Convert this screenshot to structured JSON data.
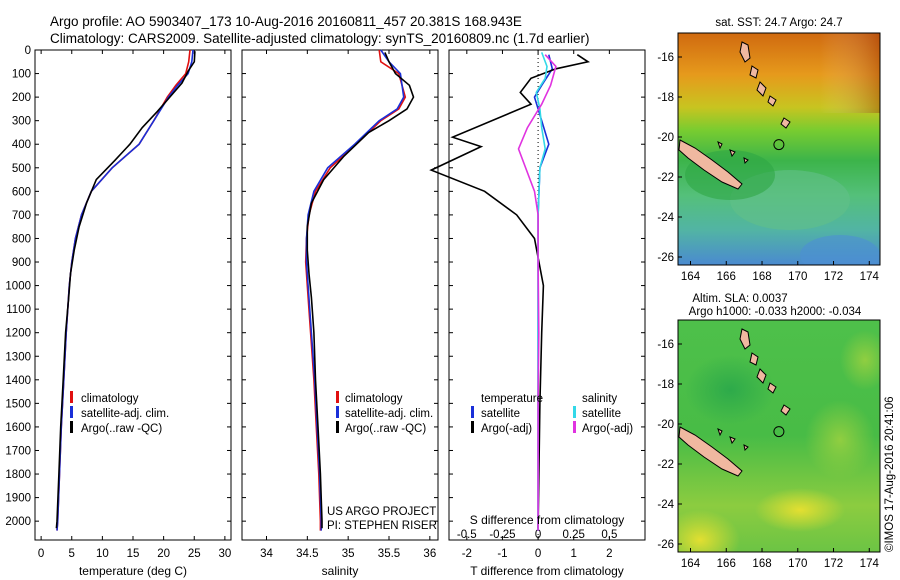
{
  "header": {
    "line1": "Argo profile: AO 5903407_173 10-Aug-2016 20160811_457 20.381S 168.943E",
    "line2": "Climatology: CARS2009. Satellite-adjusted climatology: synTS_20160809.nc (1.7d earlier)"
  },
  "colors": {
    "climatology": "#e01010",
    "satellite": "#1a2fd8",
    "argo": "#000000",
    "salinity_satellite": "#33d8e8",
    "salinity_argo": "#e033e0"
  },
  "chart_data": [
    {
      "type": "line",
      "name": "temperature-profile",
      "xlabel": "temperature (deg C)",
      "ylabel": "",
      "xlim": [
        -1,
        31
      ],
      "ylim": [
        2080,
        0
      ],
      "xticks": [
        0,
        5,
        10,
        15,
        20,
        25,
        30
      ],
      "yticks": [
        0,
        100,
        200,
        300,
        400,
        500,
        600,
        700,
        800,
        900,
        1000,
        1100,
        1200,
        1300,
        1400,
        1500,
        1600,
        1700,
        1800,
        1900,
        2000
      ],
      "legend": [
        "climatology",
        "satellite-adj. clim.",
        "Argo(..raw -QC)"
      ],
      "series": [
        {
          "name": "climatology",
          "color": "#e01010",
          "points": [
            [
              24.3,
              0
            ],
            [
              24.1,
              50
            ],
            [
              23.6,
              100
            ],
            [
              22,
              150
            ],
            [
              20.6,
              200
            ],
            [
              18.4,
              300
            ],
            [
              16,
              400
            ],
            [
              11.6,
              500
            ],
            [
              8.2,
              600
            ],
            [
              6.6,
              700
            ],
            [
              5.6,
              800
            ],
            [
              5,
              900
            ],
            [
              4.6,
              1000
            ],
            [
              4.1,
              1200
            ],
            [
              3.7,
              1400
            ],
            [
              3.3,
              1600
            ],
            [
              3,
              1800
            ],
            [
              2.7,
              2000
            ],
            [
              2.6,
              2040
            ]
          ]
        },
        {
          "name": "satellite-adj. clim.",
          "color": "#1a2fd8",
          "points": [
            [
              24.8,
              0
            ],
            [
              24.6,
              50
            ],
            [
              24,
              100
            ],
            [
              22.3,
              150
            ],
            [
              20.8,
              200
            ],
            [
              18.4,
              300
            ],
            [
              16,
              400
            ],
            [
              11.6,
              500
            ],
            [
              8.2,
              600
            ],
            [
              6.6,
              700
            ],
            [
              5.6,
              800
            ],
            [
              5,
              900
            ],
            [
              4.6,
              1000
            ],
            [
              4.1,
              1200
            ],
            [
              3.7,
              1400
            ],
            [
              3.3,
              1600
            ],
            [
              3,
              1800
            ],
            [
              2.7,
              2000
            ],
            [
              2.6,
              2040
            ]
          ]
        },
        {
          "name": "Argo(..raw -QC)",
          "color": "#000000",
          "points": [
            [
              25.1,
              5
            ],
            [
              25,
              50
            ],
            [
              24,
              90
            ],
            [
              23,
              140
            ],
            [
              21,
              200
            ],
            [
              19,
              260
            ],
            [
              16.5,
              330
            ],
            [
              14.5,
              400
            ],
            [
              12,
              470
            ],
            [
              9,
              550
            ],
            [
              7.4,
              650
            ],
            [
              6.2,
              750
            ],
            [
              5.4,
              850
            ],
            [
              4.8,
              950
            ],
            [
              4.5,
              1050
            ],
            [
              4,
              1200
            ],
            [
              3.6,
              1400
            ],
            [
              3.2,
              1600
            ],
            [
              2.9,
              1800
            ],
            [
              2.6,
              2000
            ],
            [
              2.5,
              2030
            ]
          ]
        }
      ]
    },
    {
      "type": "line",
      "name": "salinity-profile",
      "xlabel": "salinity",
      "ylabel": "",
      "xlim": [
        33.7,
        36.1
      ],
      "ylim": [
        2080,
        0
      ],
      "xticks": [
        34,
        34.5,
        35,
        35.5,
        36
      ],
      "legend": [
        "climatology",
        "satellite-adj. clim.",
        "Argo(..raw -QC)"
      ],
      "annotation": [
        "US ARGO PROJECT",
        "PI: STEPHEN RISER"
      ],
      "series": [
        {
          "name": "climatology",
          "color": "#e01010",
          "points": [
            [
              35.38,
              0
            ],
            [
              35.4,
              50
            ],
            [
              35.62,
              100
            ],
            [
              35.7,
              200
            ],
            [
              35.62,
              250
            ],
            [
              35.4,
              300
            ],
            [
              35.1,
              400
            ],
            [
              34.78,
              500
            ],
            [
              34.6,
              600
            ],
            [
              34.52,
              700
            ],
            [
              34.49,
              800
            ],
            [
              34.48,
              900
            ],
            [
              34.5,
              1000
            ],
            [
              34.54,
              1200
            ],
            [
              34.58,
              1400
            ],
            [
              34.61,
              1600
            ],
            [
              34.64,
              1800
            ],
            [
              34.66,
              2000
            ],
            [
              34.66,
              2040
            ]
          ]
        },
        {
          "name": "satellite-adj. clim.",
          "color": "#1a2fd8",
          "points": [
            [
              35.4,
              0
            ],
            [
              35.5,
              50
            ],
            [
              35.64,
              100
            ],
            [
              35.68,
              200
            ],
            [
              35.6,
              250
            ],
            [
              35.38,
              300
            ],
            [
              35.08,
              400
            ],
            [
              34.75,
              500
            ],
            [
              34.58,
              600
            ],
            [
              34.51,
              700
            ],
            [
              34.49,
              800
            ],
            [
              34.49,
              900
            ],
            [
              34.51,
              1000
            ],
            [
              34.55,
              1200
            ],
            [
              34.59,
              1400
            ],
            [
              34.62,
              1600
            ],
            [
              34.65,
              1800
            ],
            [
              34.67,
              2000
            ],
            [
              34.67,
              2040
            ]
          ]
        },
        {
          "name": "Argo(..raw -QC)",
          "color": "#000000",
          "points": [
            [
              35.45,
              10
            ],
            [
              35.5,
              50
            ],
            [
              35.58,
              100
            ],
            [
              35.75,
              150
            ],
            [
              35.8,
              200
            ],
            [
              35.72,
              250
            ],
            [
              35.5,
              300
            ],
            [
              35.25,
              350
            ],
            [
              34.95,
              450
            ],
            [
              34.7,
              550
            ],
            [
              34.55,
              650
            ],
            [
              34.5,
              750
            ],
            [
              34.5,
              850
            ],
            [
              34.52,
              950
            ],
            [
              34.55,
              1050
            ],
            [
              34.58,
              1200
            ],
            [
              34.6,
              1400
            ],
            [
              34.63,
              1600
            ],
            [
              34.66,
              1800
            ],
            [
              34.68,
              2000
            ],
            [
              34.68,
              2030
            ]
          ]
        }
      ]
    },
    {
      "type": "line",
      "name": "difference-profile",
      "xlabel": "T difference from climatology",
      "xlabel_top": "S difference from climatology",
      "xlim": [
        -2.5,
        3
      ],
      "ylim": [
        2080,
        0
      ],
      "xticks": [
        -2,
        -1,
        0,
        1,
        2
      ],
      "xticks_top": [
        -0.5,
        -0.25,
        0,
        0.25,
        0.5
      ],
      "legend_titles": [
        "temperature",
        "salinity"
      ],
      "legend": [
        "satellite",
        "Argo(-adj)",
        "satellite",
        "Argo(-adj)"
      ],
      "series": [
        {
          "name": "temperature satellite",
          "color": "#1a2fd8",
          "points": [
            [
              0.3,
              20
            ],
            [
              0.4,
              80
            ],
            [
              0.1,
              150
            ],
            [
              -0.1,
              200
            ],
            [
              0.1,
              300
            ],
            [
              0.3,
              400
            ],
            [
              0.05,
              500
            ],
            [
              0,
              700
            ],
            [
              0,
              1000
            ],
            [
              0,
              1500
            ],
            [
              0,
              2040
            ]
          ]
        },
        {
          "name": "temperature Argo(-adj)",
          "color": "#000000",
          "points": [
            [
              1.1,
              20
            ],
            [
              1.4,
              50
            ],
            [
              0.5,
              80
            ],
            [
              -0.2,
              120
            ],
            [
              -0.5,
              180
            ],
            [
              -0.2,
              230
            ],
            [
              -2.4,
              370
            ],
            [
              -1.6,
              410
            ],
            [
              -3,
              510
            ],
            [
              -1.5,
              600
            ],
            [
              -0.6,
              700
            ],
            [
              -0.1,
              800
            ],
            [
              0.15,
              1000
            ],
            [
              0.1,
              1200
            ],
            [
              0.05,
              1500
            ],
            [
              0,
              2030
            ]
          ]
        },
        {
          "name": "salinity satellite",
          "color": "#33d8e8",
          "points": [
            [
              0.1,
              10
            ],
            [
              0.25,
              70
            ],
            [
              0.2,
              120
            ],
            [
              -0.05,
              180
            ],
            [
              0.05,
              250
            ],
            [
              0.1,
              330
            ],
            [
              0.2,
              420
            ],
            [
              0.05,
              500
            ],
            [
              0,
              700
            ],
            [
              0,
              1000
            ],
            [
              0,
              1500
            ],
            [
              0,
              2040
            ]
          ]
        },
        {
          "name": "salinity Argo(-adj)",
          "color": "#e033e0",
          "points": [
            [
              0.2,
              20
            ],
            [
              0.5,
              70
            ],
            [
              0.35,
              150
            ],
            [
              0.1,
              230
            ],
            [
              -0.3,
              330
            ],
            [
              -0.55,
              420
            ],
            [
              -0.3,
              520
            ],
            [
              -0.1,
              600
            ],
            [
              0,
              700
            ],
            [
              0,
              900
            ],
            [
              0.02,
              1200
            ],
            [
              0,
              1500
            ],
            [
              0,
              2040
            ]
          ]
        }
      ]
    },
    {
      "type": "heatmap",
      "name": "sst-map",
      "title": "sat. SST: 24.7  Argo: 24.7",
      "xlim": [
        163.3,
        174.6
      ],
      "ylim": [
        -26.4,
        -14.8
      ],
      "xticks": [
        164,
        166,
        168,
        170,
        172,
        174
      ],
      "yticks": [
        -16,
        -18,
        -20,
        -22,
        -24,
        -26
      ],
      "argo_position": [
        168.943,
        -20.381
      ]
    },
    {
      "type": "heatmap",
      "name": "sla-map",
      "title": "Altim. SLA: 0.0037",
      "subtitle": "Argo h1000: -0.033 h2000: -0.034",
      "xlim": [
        163.3,
        174.6
      ],
      "ylim": [
        -26.4,
        -14.8
      ],
      "xticks": [
        164,
        166,
        168,
        170,
        172,
        174
      ],
      "yticks": [
        -16,
        -18,
        -20,
        -22,
        -24,
        -26
      ],
      "argo_position": [
        168.943,
        -20.381
      ]
    }
  ],
  "footer": {
    "credit": "©IMOS 17-Aug-2016 20:41:06"
  }
}
